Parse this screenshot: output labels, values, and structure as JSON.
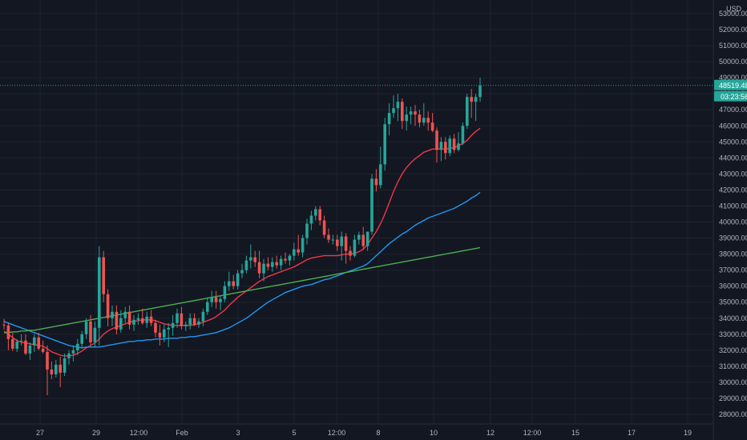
{
  "chart_data": {
    "type": "candlestick",
    "currency": "USD",
    "current_price": "48519.48",
    "countdown": "03:23:56",
    "ylim": [
      27500,
      53500
    ],
    "y_ticks": [
      "28000.00",
      "29000.00",
      "30000.00",
      "31000.00",
      "32000.00",
      "33000.00",
      "34000.00",
      "35000.00",
      "36000.00",
      "37000.00",
      "38000.00",
      "39000.00",
      "40000.00",
      "41000.00",
      "42000.00",
      "43000.00",
      "44000.00",
      "45000.00",
      "46000.00",
      "47000.00",
      "48000.00",
      "49000.00",
      "50000.00",
      "51000.00",
      "52000.00",
      "53000.00"
    ],
    "x_ticks": [
      "27",
      "29",
      "12:00",
      "Feb",
      "3",
      "5",
      "12:00",
      "8",
      "10",
      "12",
      "12:00",
      "15",
      "17",
      "19"
    ],
    "candles": [
      [
        33600,
        33950,
        33300,
        33550
      ],
      [
        33550,
        33700,
        32000,
        32700
      ],
      [
        32700,
        33100,
        31950,
        32100
      ],
      [
        32100,
        32700,
        31900,
        32550
      ],
      [
        32550,
        33000,
        32300,
        32600
      ],
      [
        32600,
        33000,
        31700,
        31800
      ],
      [
        31800,
        32500,
        31400,
        32300
      ],
      [
        32300,
        33000,
        31900,
        32800
      ],
      [
        32800,
        33100,
        32000,
        32100
      ],
      [
        32100,
        32600,
        31800,
        31900
      ],
      [
        31900,
        32300,
        29200,
        30800
      ],
      [
        30800,
        31300,
        30200,
        30500
      ],
      [
        30500,
        31400,
        30300,
        31100
      ],
      [
        31100,
        31600,
        29700,
        30600
      ],
      [
        30600,
        31800,
        30400,
        31500
      ],
      [
        31500,
        32000,
        31100,
        31800
      ],
      [
        31800,
        32300,
        31300,
        32000
      ],
      [
        32000,
        32700,
        31700,
        32400
      ],
      [
        32400,
        33200,
        32100,
        33000
      ],
      [
        33000,
        34000,
        32700,
        33800
      ],
      [
        33800,
        34200,
        32300,
        32500
      ],
      [
        32500,
        33800,
        32200,
        33400
      ],
      [
        33400,
        38500,
        32300,
        37800
      ],
      [
        37800,
        38200,
        35000,
        35500
      ],
      [
        35500,
        35800,
        33500,
        34000
      ],
      [
        34000,
        34800,
        33500,
        34400
      ],
      [
        34400,
        34800,
        33000,
        33300
      ],
      [
        33300,
        34500,
        33100,
        34000
      ],
      [
        34000,
        34700,
        33700,
        34400
      ],
      [
        34400,
        34800,
        33300,
        33600
      ],
      [
        33600,
        34200,
        33200,
        33900
      ],
      [
        33900,
        34300,
        33600,
        34000
      ],
      [
        34000,
        34600,
        33600,
        33700
      ],
      [
        33700,
        34400,
        33400,
        34100
      ],
      [
        34100,
        34500,
        33500,
        33700
      ],
      [
        33700,
        33900,
        32800,
        33100
      ],
      [
        33100,
        33600,
        32300,
        32800
      ],
      [
        32800,
        33600,
        32500,
        33300
      ],
      [
        33300,
        33700,
        32200,
        33400
      ],
      [
        33400,
        34200,
        32900,
        33700
      ],
      [
        33700,
        34600,
        33400,
        34300
      ],
      [
        34300,
        34700,
        33300,
        33500
      ],
      [
        33500,
        33800,
        33200,
        33600
      ],
      [
        33600,
        34300,
        33300,
        34000
      ],
      [
        34000,
        34300,
        33500,
        33600
      ],
      [
        33600,
        34000,
        33400,
        33800
      ],
      [
        33800,
        34600,
        33500,
        34400
      ],
      [
        34400,
        35300,
        34200,
        35000
      ],
      [
        35000,
        35700,
        34700,
        35300
      ],
      [
        35300,
        35700,
        34600,
        35000
      ],
      [
        35000,
        35400,
        34500,
        35200
      ],
      [
        35200,
        36300,
        35000,
        36000
      ],
      [
        36000,
        36900,
        35700,
        36300
      ],
      [
        36300,
        36700,
        35800,
        36000
      ],
      [
        36000,
        37000,
        35800,
        36800
      ],
      [
        36800,
        37400,
        36500,
        37000
      ],
      [
        37000,
        37900,
        36800,
        37600
      ],
      [
        37600,
        38600,
        37100,
        37800
      ],
      [
        37800,
        38200,
        37200,
        37500
      ],
      [
        37500,
        38200,
        36500,
        36800
      ],
      [
        36800,
        37700,
        36300,
        37400
      ],
      [
        37400,
        37800,
        37000,
        37200
      ],
      [
        37200,
        37800,
        36900,
        37500
      ],
      [
        37500,
        37900,
        37100,
        37300
      ],
      [
        37300,
        37900,
        37000,
        37700
      ],
      [
        37700,
        38100,
        37400,
        37600
      ],
      [
        37600,
        38000,
        37300,
        37900
      ],
      [
        37900,
        38700,
        37600,
        38300
      ],
      [
        38300,
        39200,
        37900,
        38100
      ],
      [
        38100,
        39200,
        37800,
        39000
      ],
      [
        39000,
        40200,
        38600,
        39900
      ],
      [
        39900,
        40700,
        39500,
        40400
      ],
      [
        40400,
        41000,
        40100,
        40800
      ],
      [
        40800,
        41000,
        39800,
        40100
      ],
      [
        40100,
        40400,
        39000,
        39200
      ],
      [
        39200,
        39600,
        38700,
        38900
      ],
      [
        38900,
        39200,
        38600,
        38900
      ],
      [
        38900,
        39200,
        38200,
        38500
      ],
      [
        38500,
        39400,
        37600,
        39100
      ],
      [
        39100,
        39300,
        37400,
        38200
      ],
      [
        38200,
        38500,
        37600,
        37900
      ],
      [
        37900,
        39200,
        37800,
        38900
      ],
      [
        38900,
        39400,
        38600,
        39200
      ],
      [
        39200,
        39700,
        38300,
        38500
      ],
      [
        38500,
        39300,
        38200,
        39400
      ],
      [
        39400,
        43000,
        39200,
        42700
      ],
      [
        42700,
        43300,
        41900,
        42300
      ],
      [
        42300,
        44700,
        42100,
        43600
      ],
      [
        43600,
        46500,
        43200,
        46100
      ],
      [
        46100,
        47400,
        45400,
        46800
      ],
      [
        46800,
        47900,
        46500,
        47100
      ],
      [
        47100,
        48000,
        46300,
        47500
      ],
      [
        47500,
        47700,
        45800,
        46300
      ],
      [
        46300,
        47200,
        45700,
        46700
      ],
      [
        46700,
        47200,
        46100,
        46900
      ],
      [
        46900,
        47300,
        46000,
        46700
      ],
      [
        46700,
        47000,
        45900,
        46200
      ],
      [
        46200,
        47400,
        46000,
        46500
      ],
      [
        46500,
        46900,
        45700,
        46200
      ],
      [
        46200,
        46800,
        45600,
        45700
      ],
      [
        45700,
        45900,
        43700,
        44500
      ],
      [
        44500,
        45300,
        43800,
        45000
      ],
      [
        45000,
        45300,
        43900,
        44300
      ],
      [
        44300,
        45400,
        44100,
        45200
      ],
      [
        45200,
        45500,
        44300,
        44500
      ],
      [
        44500,
        45600,
        44400,
        44900
      ],
      [
        44900,
        46200,
        44800,
        46000
      ],
      [
        46000,
        48000,
        45800,
        47800
      ],
      [
        47800,
        48300,
        46500,
        47500
      ],
      [
        47500,
        48000,
        46300,
        47800
      ],
      [
        47800,
        49000,
        47500,
        48500
      ]
    ],
    "series": [
      {
        "color": "#f23645",
        "values": [
          33200,
          33000,
          32800,
          32600,
          32500,
          32450,
          32400,
          32350,
          32300,
          32250,
          32100,
          31900,
          31800,
          31700,
          31650,
          31650,
          31700,
          31800,
          31950,
          32150,
          32300,
          32450,
          32700,
          33000,
          33200,
          33350,
          33450,
          33550,
          33650,
          33750,
          33800,
          33850,
          33900,
          33900,
          33900,
          33850,
          33750,
          33650,
          33600,
          33550,
          33550,
          33550,
          33550,
          33550,
          33600,
          33650,
          33750,
          33850,
          33950,
          34100,
          34300,
          34500,
          34800,
          35050,
          35300,
          35500,
          35700,
          35900,
          36100,
          36300,
          36450,
          36600,
          36700,
          36800,
          36900,
          37000,
          37100,
          37200,
          37350,
          37500,
          37650,
          37750,
          37800,
          37850,
          37900,
          37900,
          37900,
          37900,
          37950,
          38000,
          38000,
          38050,
          38150,
          38300,
          38600,
          39000,
          39400,
          39900,
          40500,
          41200,
          41900,
          42500,
          43000,
          43400,
          43700,
          43950,
          44150,
          44350,
          44450,
          44550,
          44550,
          44550,
          44550,
          44600,
          44650,
          44750,
          44900,
          45100,
          45400,
          45650,
          45850
        ]
      },
      {
        "color": "#2196f3",
        "values": [
          33800,
          33700,
          33600,
          33500,
          33400,
          33300,
          33200,
          33100,
          33000,
          32900,
          32800,
          32700,
          32600,
          32500,
          32400,
          32300,
          32250,
          32200,
          32150,
          32200,
          32200,
          32200,
          32200,
          32250,
          32300,
          32350,
          32400,
          32450,
          32500,
          32550,
          32550,
          32600,
          32600,
          32650,
          32650,
          32700,
          32700,
          32700,
          32750,
          32750,
          32750,
          32800,
          32800,
          32850,
          32850,
          32900,
          32950,
          33000,
          33050,
          33100,
          33200,
          33300,
          33400,
          33550,
          33700,
          33850,
          34000,
          34200,
          34400,
          34600,
          34800,
          35000,
          35150,
          35300,
          35450,
          35600,
          35700,
          35800,
          35900,
          36000,
          36050,
          36100,
          36200,
          36300,
          36400,
          36450,
          36550,
          36650,
          36750,
          36850,
          36950,
          37050,
          37150,
          37250,
          37400,
          37650,
          37900,
          38150,
          38400,
          38650,
          38850,
          39050,
          39250,
          39400,
          39600,
          39800,
          39950,
          40100,
          40250,
          40350,
          40450,
          40550,
          40650,
          40750,
          40850,
          41000,
          41150,
          41300,
          41500,
          41650,
          41850
        ]
      },
      {
        "color": "#4caf50",
        "values": [
          33100,
          33100,
          33150,
          33150,
          33200,
          33200,
          33250,
          33250,
          33300,
          33350,
          33400,
          33450,
          33500,
          33550,
          33600,
          33650,
          33700,
          33750,
          33800,
          33850,
          33900,
          33950,
          34000,
          34050,
          34100,
          34150,
          34200,
          34250,
          34300,
          34350,
          34400,
          34450,
          34500,
          34550,
          34600,
          34650,
          34700,
          34750,
          34800,
          34850,
          34900,
          34950,
          35000,
          35050,
          35100,
          35150,
          35200,
          35250,
          35300,
          35350,
          35400,
          35450,
          35500,
          35550,
          35600,
          35650,
          35700,
          35750,
          35800,
          35850,
          35900,
          35950,
          36000,
          36050,
          36100,
          36150,
          36200,
          36250,
          36300,
          36350,
          36400,
          36450,
          36500,
          36550,
          36600,
          36650,
          36700,
          36750,
          36800,
          36850,
          36900,
          36950,
          37000,
          37050,
          37100,
          37150,
          37200,
          37250,
          37300,
          37350,
          37400,
          37450,
          37500,
          37550,
          37600,
          37650,
          37700,
          37750,
          37800,
          37850,
          37900,
          37950,
          38000,
          38050,
          38100,
          38150,
          38200,
          38250,
          38300,
          38350,
          38400
        ]
      }
    ],
    "colors": {
      "up": "#26a69a",
      "down": "#ef5350",
      "background": "#131722",
      "grid": "#1e222d",
      "text": "#b2b5be",
      "last_price_line": "#26a69a"
    }
  }
}
